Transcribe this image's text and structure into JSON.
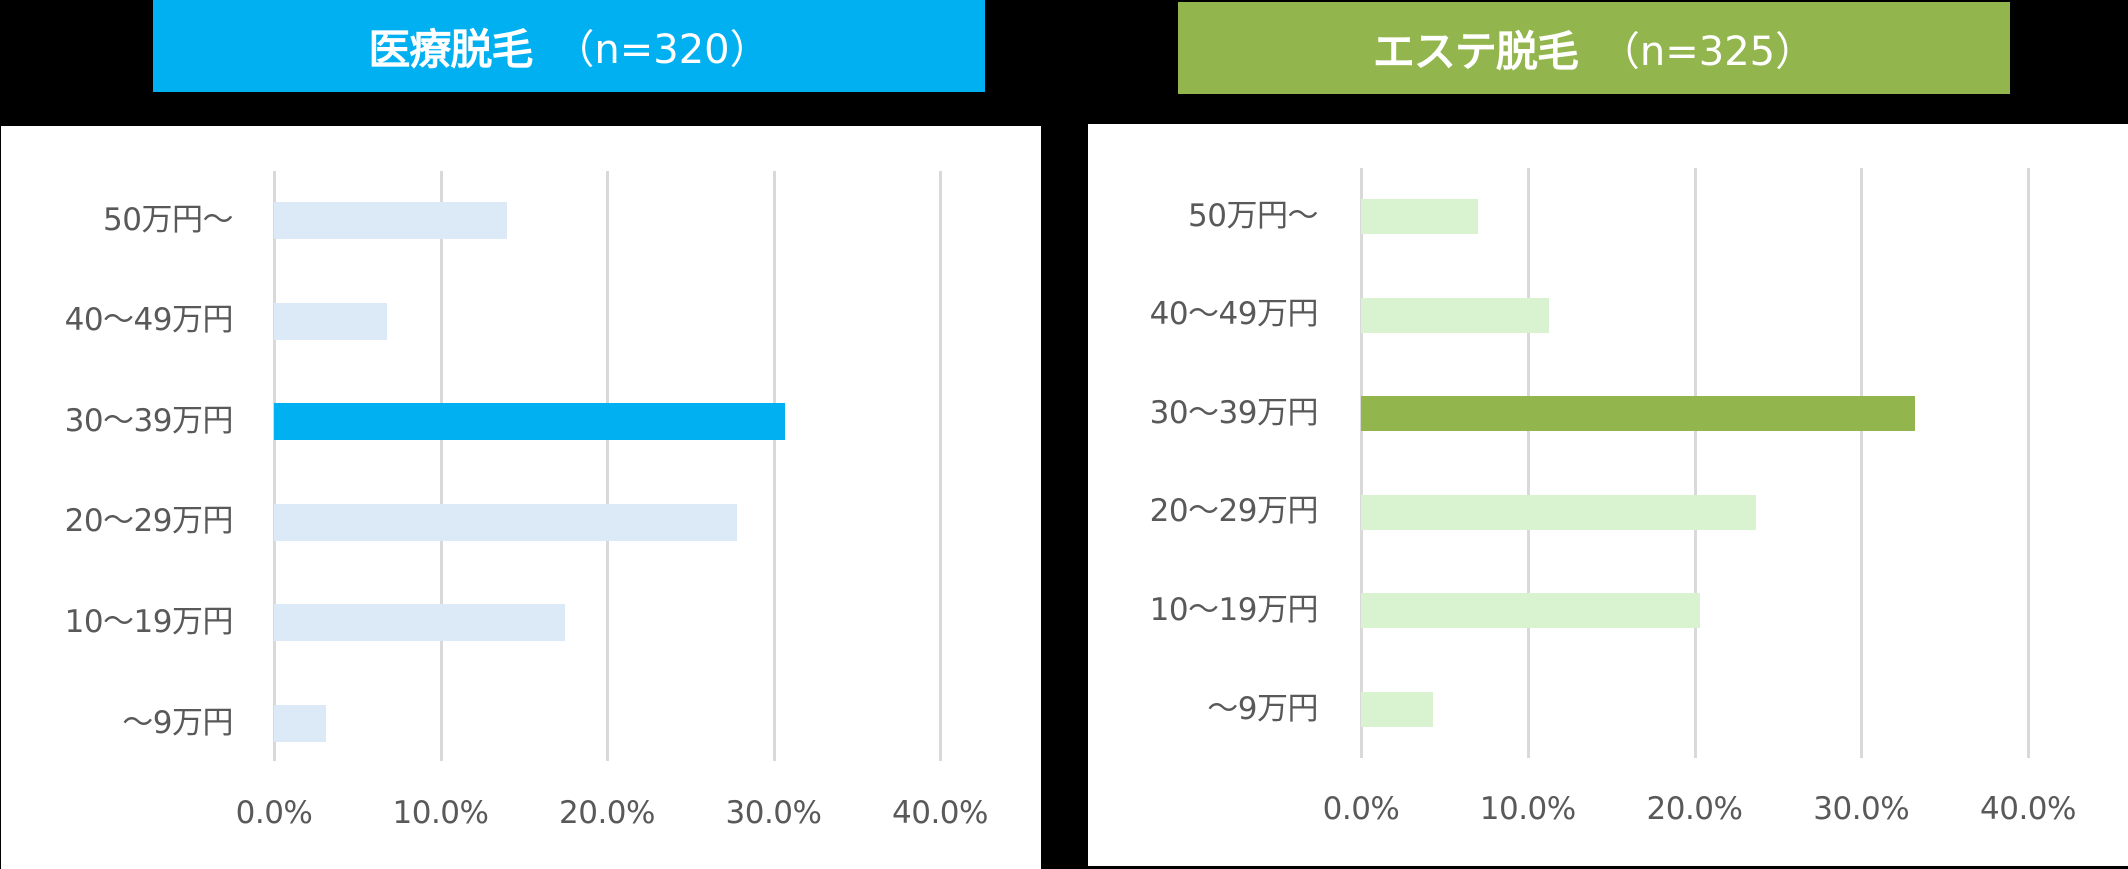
{
  "colors": {
    "background": "#000000",
    "panel": "#ffffff",
    "medical_accent": "#00b0f0",
    "medical_light": "#dce9f6",
    "esthetic_accent": "#92b54d",
    "esthetic_light": "#d9f2d0",
    "gridline": "#d9d9d9",
    "label_text": "#595959"
  },
  "charts": [
    {
      "title": "医療脱毛",
      "sample_size": "（n=320）",
      "categories": [
        "50万円〜",
        "40〜49万円",
        "30〜39万円",
        "20〜29万円",
        "10〜19万円",
        "〜9万円"
      ],
      "x_ticks": [
        "0.0%",
        "10.0%",
        "20.0%",
        "30.0%",
        "40.0%"
      ]
    },
    {
      "title": "エステ脱毛",
      "sample_size": "（n=325）",
      "categories": [
        "50万円〜",
        "40〜49万円",
        "30〜39万円",
        "20〜29万円",
        "10〜19万円",
        "〜9万円"
      ],
      "x_ticks": [
        "0.0%",
        "10.0%",
        "20.0%",
        "30.0%",
        "40.0%"
      ]
    }
  ],
  "chart_data": [
    {
      "type": "bar",
      "orientation": "horizontal",
      "title": "医療脱毛 （n=320）",
      "categories": [
        "50万円〜",
        "40〜49万円",
        "30〜39万円",
        "20〜29万円",
        "10〜19万円",
        "〜9万円"
      ],
      "values": [
        14.0,
        6.8,
        30.7,
        27.8,
        17.5,
        3.1
      ],
      "unit": "%",
      "highlighted_category": "30〜39万円",
      "highlight_color": "#00b0f0",
      "bar_color": "#dce9f6",
      "xlabel": "",
      "ylabel": "",
      "xlim": [
        0,
        40
      ],
      "x_ticks": [
        "0.0%",
        "10.0%",
        "20.0%",
        "30.0%",
        "40.0%"
      ],
      "grid": "vertical",
      "legend": "none"
    },
    {
      "type": "bar",
      "orientation": "horizontal",
      "title": "エステ脱毛 （n=325）",
      "categories": [
        "50万円〜",
        "40〜49万円",
        "30〜39万円",
        "20〜29万円",
        "10〜19万円",
        "〜9万円"
      ],
      "values": [
        7.0,
        11.3,
        33.2,
        23.7,
        20.3,
        4.3
      ],
      "unit": "%",
      "highlighted_category": "30〜39万円",
      "highlight_color": "#92b54d",
      "bar_color": "#d9f2d0",
      "xlabel": "",
      "ylabel": "",
      "xlim": [
        0,
        40
      ],
      "x_ticks": [
        "0.0%",
        "10.0%",
        "20.0%",
        "30.0%",
        "40.0%"
      ],
      "grid": "vertical",
      "legend": "none"
    }
  ]
}
